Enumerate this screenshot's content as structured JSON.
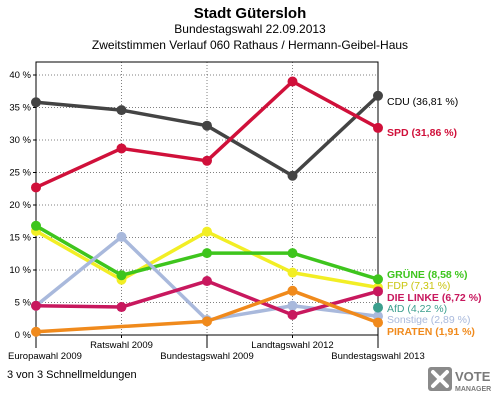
{
  "header": {
    "title": "Stadt Gütersloh",
    "subtitle": "Bundestagswahl 22.09.2013",
    "subtitle2": "Zweitstimmen Verlauf 060 Rathaus / Hermann-Geibel-Haus"
  },
  "footer": {
    "text": "3 von 3 Schnellmeldungen"
  },
  "logo": {
    "line1": "VOTE",
    "line2": "MANAGER"
  },
  "chart_data": {
    "type": "line",
    "categories": [
      "Europawahl 2009",
      "Ratswahl 2009",
      "Bundestagswahl 2009",
      "Landtagswahl 2012",
      "Bundestagswahl 2013"
    ],
    "ylim": [
      0,
      42
    ],
    "yticks": [
      "0 %",
      "5 %",
      "10 %",
      "15 %",
      "20 %",
      "25 %",
      "30 %",
      "35 %",
      "40 %"
    ],
    "grid": true,
    "series": [
      {
        "name": "CDU",
        "label": "CDU (36,81 %)",
        "color": "#444444",
        "values": [
          35.8,
          34.6,
          32.2,
          24.5,
          36.81
        ]
      },
      {
        "name": "SPD",
        "label": "SPD (31,86 %)",
        "color": "#d0103a",
        "values": [
          22.7,
          28.7,
          26.8,
          39.0,
          31.86
        ]
      },
      {
        "name": "FDP",
        "label": "FDP (7,31 %)",
        "color": "#f2ee25",
        "values": [
          16.0,
          8.5,
          15.9,
          9.6,
          7.31
        ]
      },
      {
        "name": "GRÜNE",
        "label": "GRÜNE (8,58 %)",
        "color": "#3ec51d",
        "values": [
          16.8,
          9.2,
          12.6,
          12.6,
          8.58
        ]
      },
      {
        "name": "Sonstige",
        "label": "Sonstige (2,89 %)",
        "color": "#a9b9dc",
        "values": [
          4.5,
          15.1,
          2.3,
          4.5,
          2.89
        ]
      },
      {
        "name": "DIE LINKE",
        "label": "DIE LINKE (6,72 %)",
        "color": "#c8185e",
        "values": [
          4.5,
          4.3,
          8.3,
          3.1,
          6.72
        ]
      },
      {
        "name": "PIRATEN",
        "label": "PIRATEN (1,91 %)",
        "color": "#f08a1c",
        "values": [
          0.5,
          null,
          2.1,
          6.8,
          1.91
        ]
      },
      {
        "name": "AfD",
        "label": "AfD (4,22 %)",
        "color": "#3c9f8e",
        "values": [
          null,
          null,
          null,
          null,
          4.22
        ]
      }
    ]
  }
}
